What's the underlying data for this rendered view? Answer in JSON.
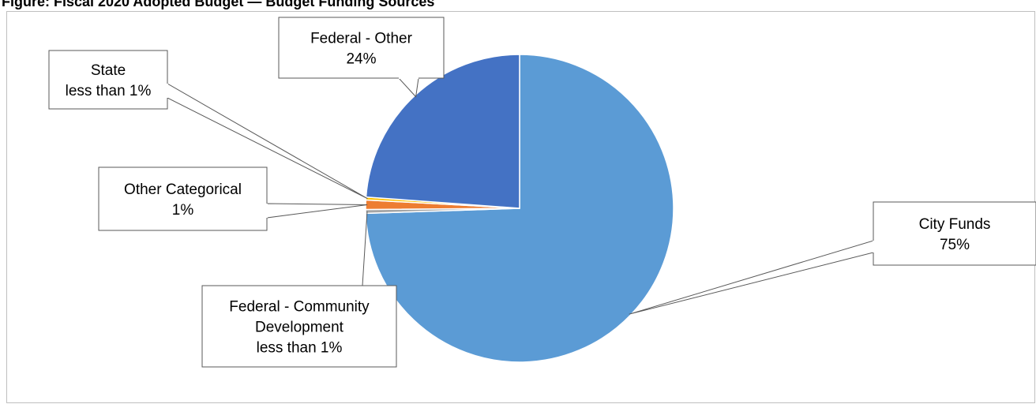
{
  "title": "Figure: Fiscal 2020 Adopted Budget — Budget Funding Sources",
  "chart_data": {
    "type": "pie",
    "slices": [
      {
        "name": "City Funds",
        "value": 75,
        "value_label": "75%",
        "color": "#5b9bd5"
      },
      {
        "name": "Federal - Community Development",
        "value": 0.4,
        "value_label": "less than 1%",
        "color": "#a5a5a5"
      },
      {
        "name": "Other Categorical",
        "value": 1,
        "value_label": "1%",
        "color": "#ed7d31"
      },
      {
        "name": "State",
        "value": 0.3,
        "value_label": "less than 1%",
        "color": "#ffc000"
      },
      {
        "name": "Federal - Other",
        "value": 24,
        "value_label": "24%",
        "color": "#4472c4"
      }
    ]
  }
}
